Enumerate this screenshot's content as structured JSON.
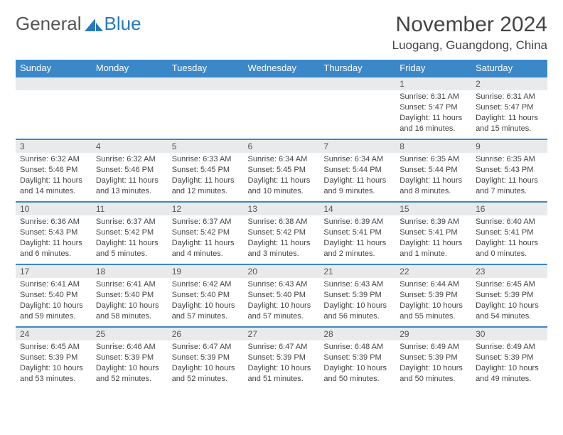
{
  "brand": {
    "word1": "General",
    "word2": "Blue"
  },
  "colors": {
    "header_bg": "#3b88c9",
    "header_text": "#ffffff",
    "row_divider": "#3b88c9",
    "daynum_bg": "#e9eaec",
    "body_text": "#444444",
    "logo_gray": "#555555",
    "logo_blue": "#2779bd",
    "page_bg": "#ffffff"
  },
  "title": "November 2024",
  "location": "Luogang, Guangdong, China",
  "weekdays": [
    "Sunday",
    "Monday",
    "Tuesday",
    "Wednesday",
    "Thursday",
    "Friday",
    "Saturday"
  ],
  "weeks": [
    [
      null,
      null,
      null,
      null,
      null,
      {
        "n": "1",
        "sunrise": "Sunrise: 6:31 AM",
        "sunset": "Sunset: 5:47 PM",
        "daylight": "Daylight: 11 hours and 16 minutes."
      },
      {
        "n": "2",
        "sunrise": "Sunrise: 6:31 AM",
        "sunset": "Sunset: 5:47 PM",
        "daylight": "Daylight: 11 hours and 15 minutes."
      }
    ],
    [
      {
        "n": "3",
        "sunrise": "Sunrise: 6:32 AM",
        "sunset": "Sunset: 5:46 PM",
        "daylight": "Daylight: 11 hours and 14 minutes."
      },
      {
        "n": "4",
        "sunrise": "Sunrise: 6:32 AM",
        "sunset": "Sunset: 5:46 PM",
        "daylight": "Daylight: 11 hours and 13 minutes."
      },
      {
        "n": "5",
        "sunrise": "Sunrise: 6:33 AM",
        "sunset": "Sunset: 5:45 PM",
        "daylight": "Daylight: 11 hours and 12 minutes."
      },
      {
        "n": "6",
        "sunrise": "Sunrise: 6:34 AM",
        "sunset": "Sunset: 5:45 PM",
        "daylight": "Daylight: 11 hours and 10 minutes."
      },
      {
        "n": "7",
        "sunrise": "Sunrise: 6:34 AM",
        "sunset": "Sunset: 5:44 PM",
        "daylight": "Daylight: 11 hours and 9 minutes."
      },
      {
        "n": "8",
        "sunrise": "Sunrise: 6:35 AM",
        "sunset": "Sunset: 5:44 PM",
        "daylight": "Daylight: 11 hours and 8 minutes."
      },
      {
        "n": "9",
        "sunrise": "Sunrise: 6:35 AM",
        "sunset": "Sunset: 5:43 PM",
        "daylight": "Daylight: 11 hours and 7 minutes."
      }
    ],
    [
      {
        "n": "10",
        "sunrise": "Sunrise: 6:36 AM",
        "sunset": "Sunset: 5:43 PM",
        "daylight": "Daylight: 11 hours and 6 minutes."
      },
      {
        "n": "11",
        "sunrise": "Sunrise: 6:37 AM",
        "sunset": "Sunset: 5:42 PM",
        "daylight": "Daylight: 11 hours and 5 minutes."
      },
      {
        "n": "12",
        "sunrise": "Sunrise: 6:37 AM",
        "sunset": "Sunset: 5:42 PM",
        "daylight": "Daylight: 11 hours and 4 minutes."
      },
      {
        "n": "13",
        "sunrise": "Sunrise: 6:38 AM",
        "sunset": "Sunset: 5:42 PM",
        "daylight": "Daylight: 11 hours and 3 minutes."
      },
      {
        "n": "14",
        "sunrise": "Sunrise: 6:39 AM",
        "sunset": "Sunset: 5:41 PM",
        "daylight": "Daylight: 11 hours and 2 minutes."
      },
      {
        "n": "15",
        "sunrise": "Sunrise: 6:39 AM",
        "sunset": "Sunset: 5:41 PM",
        "daylight": "Daylight: 11 hours and 1 minute."
      },
      {
        "n": "16",
        "sunrise": "Sunrise: 6:40 AM",
        "sunset": "Sunset: 5:41 PM",
        "daylight": "Daylight: 11 hours and 0 minutes."
      }
    ],
    [
      {
        "n": "17",
        "sunrise": "Sunrise: 6:41 AM",
        "sunset": "Sunset: 5:40 PM",
        "daylight": "Daylight: 10 hours and 59 minutes."
      },
      {
        "n": "18",
        "sunrise": "Sunrise: 6:41 AM",
        "sunset": "Sunset: 5:40 PM",
        "daylight": "Daylight: 10 hours and 58 minutes."
      },
      {
        "n": "19",
        "sunrise": "Sunrise: 6:42 AM",
        "sunset": "Sunset: 5:40 PM",
        "daylight": "Daylight: 10 hours and 57 minutes."
      },
      {
        "n": "20",
        "sunrise": "Sunrise: 6:43 AM",
        "sunset": "Sunset: 5:40 PM",
        "daylight": "Daylight: 10 hours and 57 minutes."
      },
      {
        "n": "21",
        "sunrise": "Sunrise: 6:43 AM",
        "sunset": "Sunset: 5:39 PM",
        "daylight": "Daylight: 10 hours and 56 minutes."
      },
      {
        "n": "22",
        "sunrise": "Sunrise: 6:44 AM",
        "sunset": "Sunset: 5:39 PM",
        "daylight": "Daylight: 10 hours and 55 minutes."
      },
      {
        "n": "23",
        "sunrise": "Sunrise: 6:45 AM",
        "sunset": "Sunset: 5:39 PM",
        "daylight": "Daylight: 10 hours and 54 minutes."
      }
    ],
    [
      {
        "n": "24",
        "sunrise": "Sunrise: 6:45 AM",
        "sunset": "Sunset: 5:39 PM",
        "daylight": "Daylight: 10 hours and 53 minutes."
      },
      {
        "n": "25",
        "sunrise": "Sunrise: 6:46 AM",
        "sunset": "Sunset: 5:39 PM",
        "daylight": "Daylight: 10 hours and 52 minutes."
      },
      {
        "n": "26",
        "sunrise": "Sunrise: 6:47 AM",
        "sunset": "Sunset: 5:39 PM",
        "daylight": "Daylight: 10 hours and 52 minutes."
      },
      {
        "n": "27",
        "sunrise": "Sunrise: 6:47 AM",
        "sunset": "Sunset: 5:39 PM",
        "daylight": "Daylight: 10 hours and 51 minutes."
      },
      {
        "n": "28",
        "sunrise": "Sunrise: 6:48 AM",
        "sunset": "Sunset: 5:39 PM",
        "daylight": "Daylight: 10 hours and 50 minutes."
      },
      {
        "n": "29",
        "sunrise": "Sunrise: 6:49 AM",
        "sunset": "Sunset: 5:39 PM",
        "daylight": "Daylight: 10 hours and 50 minutes."
      },
      {
        "n": "30",
        "sunrise": "Sunrise: 6:49 AM",
        "sunset": "Sunset: 5:39 PM",
        "daylight": "Daylight: 10 hours and 49 minutes."
      }
    ]
  ]
}
